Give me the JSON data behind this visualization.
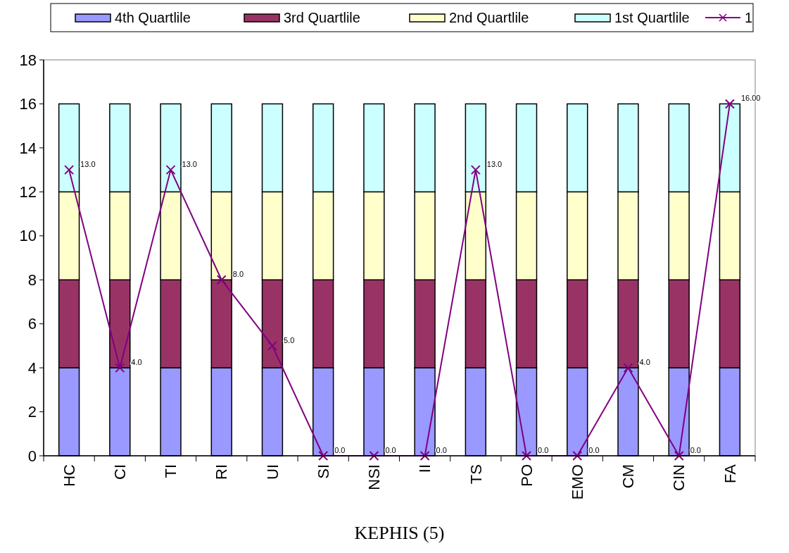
{
  "chart_data": {
    "type": "bar",
    "stacked": true,
    "xlabel": "KEPHIS (5)",
    "categories": [
      "HC",
      "CI",
      "TI",
      "RI",
      "UI",
      "SI",
      "NSI",
      "II",
      "TS",
      "PO",
      "EMO",
      "CM",
      "CIN",
      "FA"
    ],
    "series": [
      {
        "name": "4th Quartlile",
        "color": "#9999ff",
        "values": [
          4,
          4,
          4,
          4,
          4,
          4,
          4,
          4,
          4,
          4,
          4,
          4,
          4,
          4
        ]
      },
      {
        "name": "3rd Quartlile",
        "color": "#993366",
        "values": [
          4,
          4,
          4,
          4,
          4,
          4,
          4,
          4,
          4,
          4,
          4,
          4,
          4,
          4
        ]
      },
      {
        "name": "2nd Quartlile",
        "color": "#ffffcc",
        "values": [
          4,
          4,
          4,
          4,
          4,
          4,
          4,
          4,
          4,
          4,
          4,
          4,
          4,
          4
        ]
      },
      {
        "name": "1st Quartlile",
        "color": "#ccffff",
        "values": [
          4,
          4,
          4,
          4,
          4,
          4,
          4,
          4,
          4,
          4,
          4,
          4,
          4,
          4
        ]
      },
      {
        "name": "1",
        "type": "line",
        "color": "#800080",
        "marker": "cross",
        "values": [
          13,
          4,
          13,
          8,
          5,
          0,
          0,
          0,
          13,
          0,
          0,
          4,
          0,
          16
        ],
        "value_labels": [
          "13.0",
          "4.0",
          "13.0",
          "8.0",
          "5.0",
          "0.0",
          "0.0",
          "0.0",
          "13.0",
          "0.0",
          "0.0",
          "4.0",
          "0.0",
          "16.00"
        ]
      }
    ],
    "ylim": [
      0,
      18
    ],
    "yticks": [
      0,
      2,
      4,
      6,
      8,
      10,
      12,
      14,
      16,
      18
    ],
    "grid": false,
    "legend": "top"
  }
}
